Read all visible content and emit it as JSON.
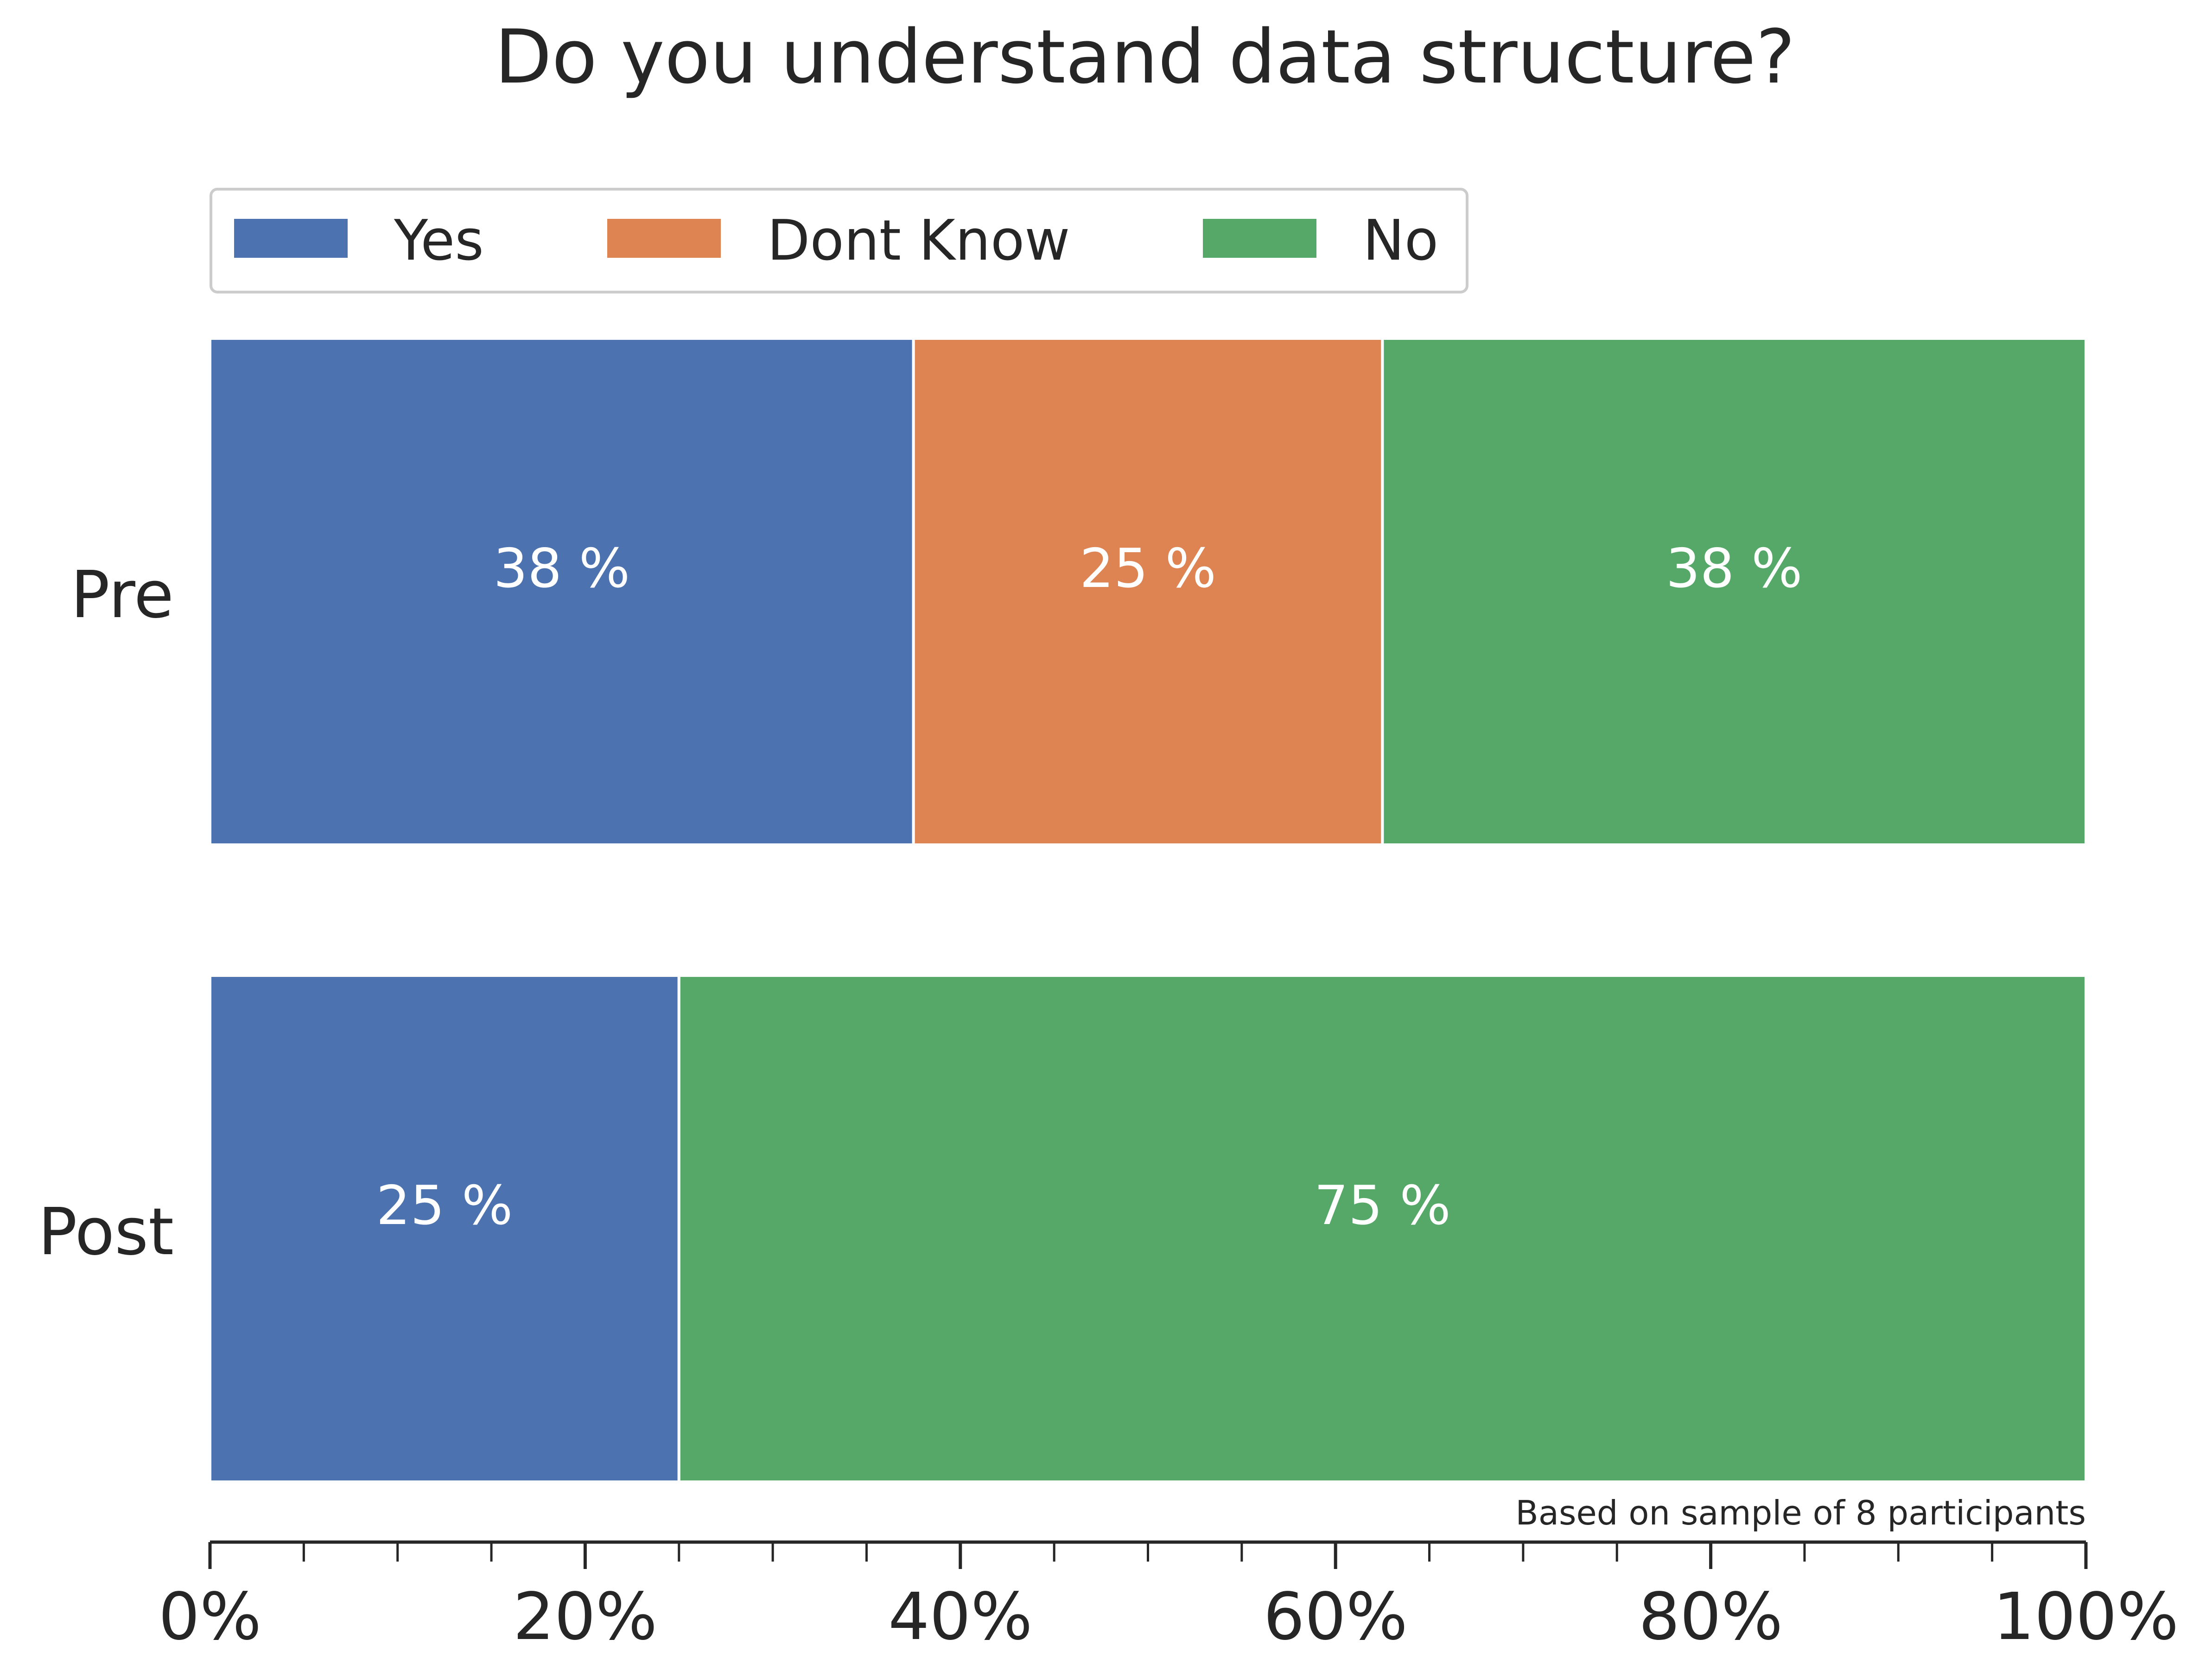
{
  "chart_data": {
    "type": "bar",
    "orientation": "horizontal",
    "stacked": true,
    "title": "Do you understand data structure?",
    "categories": [
      "Pre",
      "Post"
    ],
    "series": [
      {
        "name": "Yes",
        "color": "#4c72b0",
        "values": [
          37.5,
          25.0
        ],
        "labels": [
          "38 %",
          "25 %"
        ]
      },
      {
        "name": "Dont Know",
        "color": "#dd8452",
        "values": [
          25.0,
          0.0
        ],
        "labels": [
          "25 %",
          ""
        ]
      },
      {
        "name": "No",
        "color": "#55a868",
        "values": [
          37.5,
          75.0
        ],
        "labels": [
          "38 %",
          "75 %"
        ]
      }
    ],
    "xlim": [
      0,
      100
    ],
    "x_ticks": [
      0,
      20,
      40,
      60,
      80,
      100
    ],
    "x_tick_labels": [
      "0%",
      "20%",
      "40%",
      "60%",
      "80%",
      "100%"
    ],
    "x_minor_tick_step": 5,
    "legend_position": "top-left",
    "grid": false,
    "footnote": "Based on sample of 8 participants"
  }
}
